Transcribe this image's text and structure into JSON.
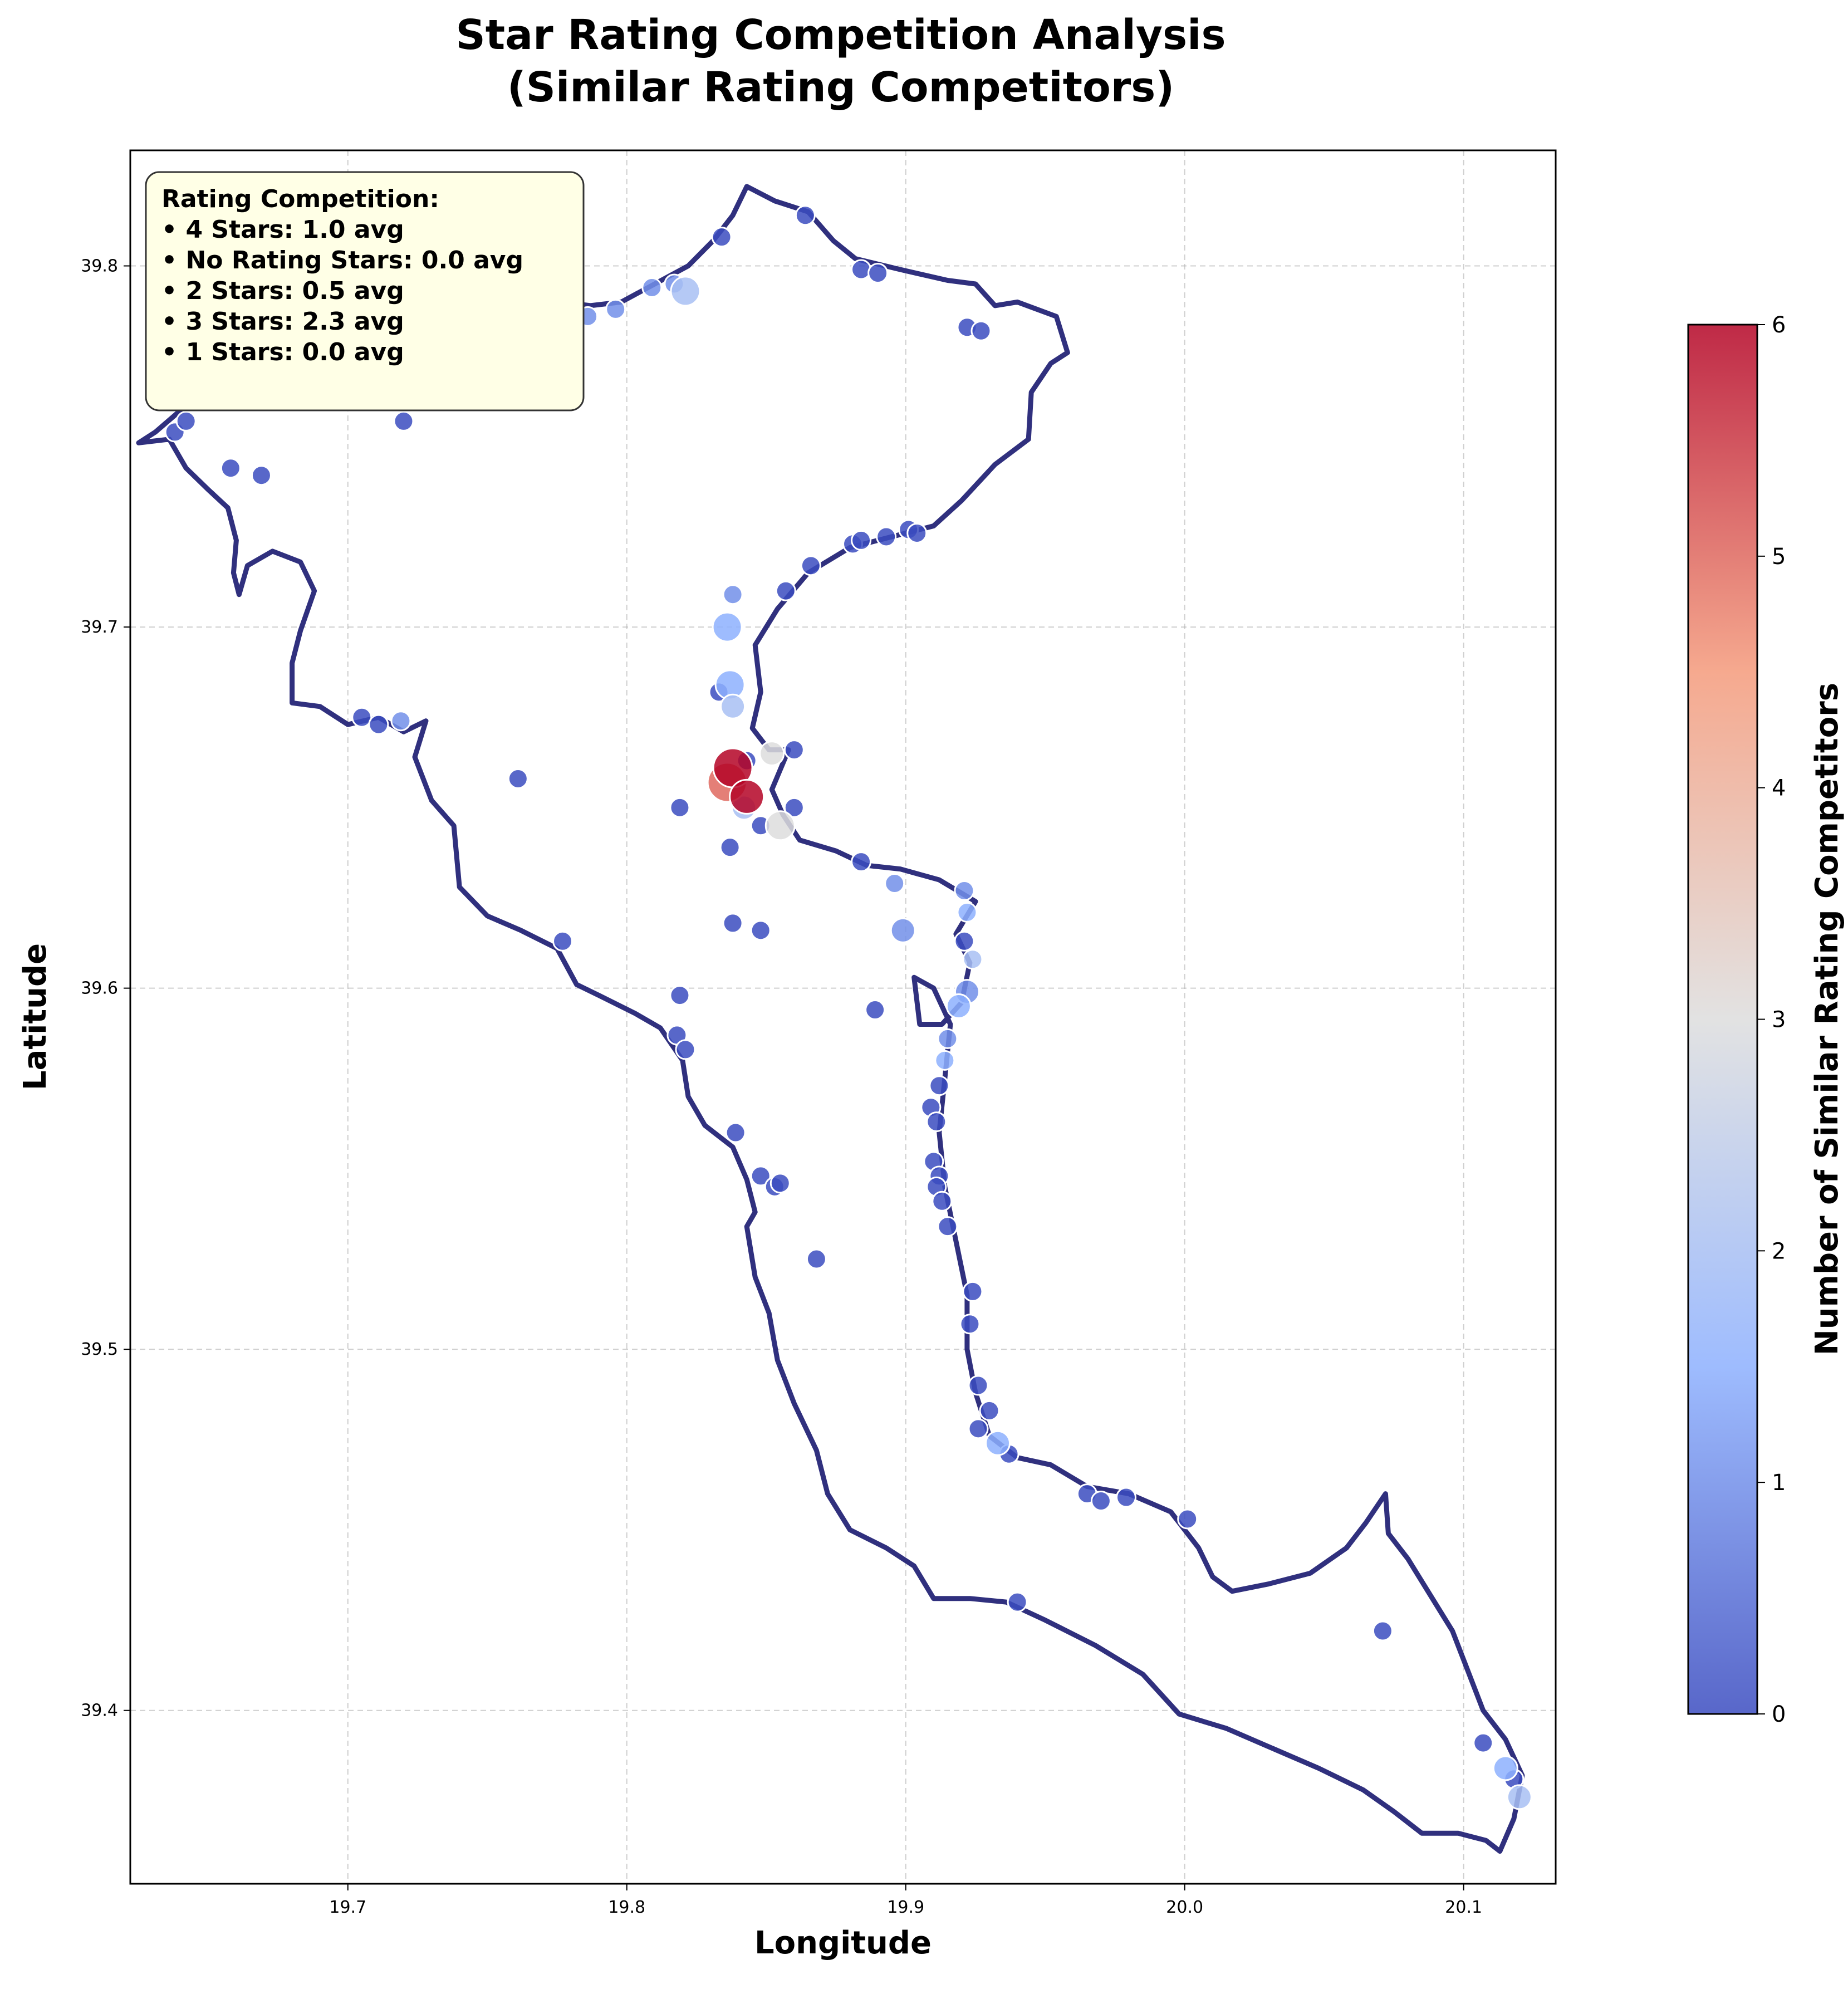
{
  "chart_data": {
    "type": "scatter",
    "title_lines": [
      "Star Rating Competition Analysis",
      "(Similar Rating Competitors)"
    ],
    "xlabel": "Longitude",
    "ylabel": "Latitude",
    "xlim": [
      19.622,
      20.133
    ],
    "ylim": [
      39.352,
      39.832
    ],
    "xticks": [
      19.7,
      19.8,
      19.9,
      20.0,
      20.1
    ],
    "yticks": [
      39.4,
      39.5,
      39.6,
      39.7,
      39.8
    ],
    "grid": true,
    "colorbar": {
      "label": "Number of Similar Rating Competitors",
      "min": 0,
      "max": 6,
      "ticks": [
        0,
        1,
        2,
        3,
        4,
        5,
        6
      ],
      "colormap": "coolwarm",
      "color_stops": [
        "#3b4cc0",
        "#8db0fe",
        "#dddddd",
        "#f49a7b",
        "#b40426"
      ]
    },
    "outline_color": "#191970",
    "info_box": {
      "title": "Rating Competition:",
      "lines": [
        "• 4 Stars: 1.0 avg",
        "• No Rating Stars: 0.0 avg",
        "• 2 Stars: 0.5 avg",
        "• 3 Stars: 2.3 avg",
        "• 1 Stars: 0.0 avg"
      ]
    },
    "outline": [
      [
        19.625,
        39.751
      ],
      [
        19.636,
        39.752
      ],
      [
        19.642,
        39.744
      ],
      [
        19.65,
        39.738
      ],
      [
        19.657,
        39.733
      ],
      [
        19.66,
        39.724
      ],
      [
        19.659,
        39.715
      ],
      [
        19.661,
        39.709
      ],
      [
        19.664,
        39.717
      ],
      [
        19.673,
        39.721
      ],
      [
        19.683,
        39.718
      ],
      [
        19.688,
        39.71
      ],
      [
        19.683,
        39.699
      ],
      [
        19.68,
        39.69
      ],
      [
        19.68,
        39.679
      ],
      [
        19.69,
        39.678
      ],
      [
        19.7,
        39.673
      ],
      [
        19.711,
        39.675
      ],
      [
        19.72,
        39.671
      ],
      [
        19.728,
        39.674
      ],
      [
        19.724,
        39.664
      ],
      [
        19.73,
        39.652
      ],
      [
        19.738,
        39.645
      ],
      [
        19.74,
        39.628
      ],
      [
        19.75,
        39.62
      ],
      [
        19.762,
        39.616
      ],
      [
        19.775,
        39.611
      ],
      [
        19.782,
        39.601
      ],
      [
        19.79,
        39.598
      ],
      [
        19.803,
        39.593
      ],
      [
        19.812,
        39.589
      ],
      [
        19.82,
        39.58
      ],
      [
        19.822,
        39.57
      ],
      [
        19.828,
        39.562
      ],
      [
        19.838,
        39.556
      ],
      [
        19.843,
        39.547
      ],
      [
        19.846,
        39.538
      ],
      [
        19.843,
        39.534
      ],
      [
        19.846,
        39.52
      ],
      [
        19.851,
        39.51
      ],
      [
        19.854,
        39.497
      ],
      [
        19.86,
        39.485
      ],
      [
        19.868,
        39.472
      ],
      [
        19.872,
        39.46
      ],
      [
        19.88,
        39.45
      ],
      [
        19.893,
        39.445
      ],
      [
        19.903,
        39.44
      ],
      [
        19.91,
        39.431
      ],
      [
        19.923,
        39.431
      ],
      [
        19.936,
        39.43
      ],
      [
        19.95,
        39.425
      ],
      [
        19.968,
        39.418
      ],
      [
        19.985,
        39.41
      ],
      [
        19.998,
        39.399
      ],
      [
        20.015,
        39.395
      ],
      [
        20.03,
        39.39
      ],
      [
        20.048,
        39.384
      ],
      [
        20.064,
        39.378
      ],
      [
        20.075,
        39.372
      ],
      [
        20.085,
        39.366
      ],
      [
        20.098,
        39.366
      ],
      [
        20.108,
        39.364
      ],
      [
        20.113,
        39.361
      ],
      [
        20.118,
        39.37
      ],
      [
        20.121,
        39.382
      ],
      [
        20.115,
        39.392
      ],
      [
        20.107,
        39.4
      ],
      [
        20.101,
        39.412
      ],
      [
        20.096,
        39.422
      ],
      [
        20.088,
        39.432
      ],
      [
        20.08,
        39.442
      ],
      [
        20.073,
        39.449
      ],
      [
        20.072,
        39.46
      ],
      [
        20.065,
        39.452
      ],
      [
        20.058,
        39.445
      ],
      [
        20.045,
        39.438
      ],
      [
        20.03,
        39.435
      ],
      [
        20.017,
        39.433
      ],
      [
        20.01,
        39.437
      ],
      [
        20.005,
        39.445
      ],
      [
        19.995,
        39.455
      ],
      [
        19.98,
        39.46
      ],
      [
        19.965,
        39.462
      ],
      [
        19.952,
        39.468
      ],
      [
        19.94,
        39.47
      ],
      [
        19.93,
        39.476
      ],
      [
        19.925,
        39.488
      ],
      [
        19.922,
        39.5
      ],
      [
        19.922,
        39.515
      ],
      [
        19.918,
        39.53
      ],
      [
        19.914,
        39.545
      ],
      [
        19.912,
        39.56
      ],
      [
        19.914,
        39.575
      ],
      [
        19.916,
        39.59
      ],
      [
        19.91,
        39.6
      ],
      [
        19.903,
        39.603
      ],
      [
        19.905,
        39.59
      ],
      [
        19.913,
        39.59
      ],
      [
        19.92,
        39.596
      ],
      [
        19.923,
        39.607
      ],
      [
        19.918,
        39.615
      ],
      [
        19.925,
        39.624
      ],
      [
        19.912,
        39.63
      ],
      [
        19.898,
        39.633
      ],
      [
        19.886,
        39.634
      ],
      [
        19.875,
        39.638
      ],
      [
        19.862,
        39.641
      ],
      [
        19.856,
        39.648
      ],
      [
        19.852,
        39.655
      ],
      [
        19.858,
        39.666
      ],
      [
        19.851,
        39.666
      ],
      [
        19.845,
        39.672
      ],
      [
        19.848,
        39.682
      ],
      [
        19.846,
        39.695
      ],
      [
        19.854,
        39.705
      ],
      [
        19.865,
        39.715
      ],
      [
        19.88,
        39.722
      ],
      [
        19.895,
        39.725
      ],
      [
        19.91,
        39.728
      ],
      [
        19.92,
        39.735
      ],
      [
        19.932,
        39.745
      ],
      [
        19.944,
        39.752
      ],
      [
        19.945,
        39.765
      ],
      [
        19.952,
        39.773
      ],
      [
        19.958,
        39.776
      ],
      [
        19.954,
        39.786
      ],
      [
        19.94,
        39.79
      ],
      [
        19.932,
        39.789
      ],
      [
        19.925,
        39.795
      ],
      [
        19.915,
        39.796
      ],
      [
        19.898,
        39.799
      ],
      [
        19.882,
        39.802
      ],
      [
        19.874,
        39.807
      ],
      [
        19.865,
        39.815
      ],
      [
        19.853,
        39.818
      ],
      [
        19.843,
        39.822
      ],
      [
        19.838,
        39.814
      ],
      [
        19.831,
        39.807
      ],
      [
        19.822,
        39.8
      ],
      [
        19.81,
        39.795
      ],
      [
        19.798,
        39.79
      ],
      [
        19.787,
        39.789
      ],
      [
        19.776,
        39.79
      ],
      [
        19.76,
        39.795
      ],
      [
        19.748,
        39.794
      ],
      [
        19.733,
        39.797
      ],
      [
        19.718,
        39.795
      ],
      [
        19.702,
        39.799
      ],
      [
        19.69,
        39.8
      ],
      [
        19.677,
        39.799
      ],
      [
        19.665,
        39.793
      ],
      [
        19.655,
        39.782
      ],
      [
        19.648,
        39.772
      ],
      [
        19.64,
        39.76
      ],
      [
        19.631,
        39.754
      ],
      [
        19.625,
        39.751
      ]
    ],
    "points": [
      {
        "x": 19.638,
        "y": 39.754,
        "c": 0,
        "s": 1
      },
      {
        "x": 19.642,
        "y": 39.757,
        "c": 0,
        "s": 1
      },
      {
        "x": 19.658,
        "y": 39.744,
        "c": 0,
        "s": 1
      },
      {
        "x": 19.669,
        "y": 39.742,
        "c": 0,
        "s": 1
      },
      {
        "x": 19.72,
        "y": 39.757,
        "c": 0,
        "s": 1
      },
      {
        "x": 19.786,
        "y": 39.786,
        "c": 1,
        "s": 1
      },
      {
        "x": 19.796,
        "y": 39.788,
        "c": 1,
        "s": 1
      },
      {
        "x": 19.809,
        "y": 39.794,
        "c": 1,
        "s": 1
      },
      {
        "x": 19.817,
        "y": 39.795,
        "c": 1,
        "s": 1
      },
      {
        "x": 19.821,
        "y": 39.793,
        "c": 2,
        "s": 2
      },
      {
        "x": 19.834,
        "y": 39.808,
        "c": 0,
        "s": 1
      },
      {
        "x": 19.864,
        "y": 39.814,
        "c": 0,
        "s": 1
      },
      {
        "x": 19.884,
        "y": 39.799,
        "c": 0,
        "s": 1
      },
      {
        "x": 19.89,
        "y": 39.798,
        "c": 0,
        "s": 1
      },
      {
        "x": 19.922,
        "y": 39.783,
        "c": 0,
        "s": 1
      },
      {
        "x": 19.927,
        "y": 39.782,
        "c": 0,
        "s": 1
      },
      {
        "x": 19.866,
        "y": 39.717,
        "c": 0,
        "s": 1
      },
      {
        "x": 19.881,
        "y": 39.723,
        "c": 0,
        "s": 1
      },
      {
        "x": 19.884,
        "y": 39.724,
        "c": 0,
        "s": 1
      },
      {
        "x": 19.893,
        "y": 39.725,
        "c": 0,
        "s": 1
      },
      {
        "x": 19.901,
        "y": 39.727,
        "c": 0,
        "s": 1
      },
      {
        "x": 19.904,
        "y": 39.726,
        "c": 0,
        "s": 1
      },
      {
        "x": 19.857,
        "y": 39.71,
        "c": 0,
        "s": 1
      },
      {
        "x": 19.838,
        "y": 39.709,
        "c": 1,
        "s": 1
      },
      {
        "x": 19.836,
        "y": 39.7,
        "c": 1.5,
        "s": 2
      },
      {
        "x": 19.837,
        "y": 39.684,
        "c": 1.5,
        "s": 2
      },
      {
        "x": 19.833,
        "y": 39.682,
        "c": 0,
        "s": 1
      },
      {
        "x": 19.838,
        "y": 39.678,
        "c": 2,
        "s": 1.5
      },
      {
        "x": 19.86,
        "y": 39.666,
        "c": 0,
        "s": 1
      },
      {
        "x": 19.852,
        "y": 39.665,
        "c": 3,
        "s": 1.5
      },
      {
        "x": 19.843,
        "y": 39.663,
        "c": 0,
        "s": 1
      },
      {
        "x": 19.838,
        "y": 39.661,
        "c": 6,
        "s": 3
      },
      {
        "x": 19.836,
        "y": 39.657,
        "c": 5,
        "s": 3
      },
      {
        "x": 19.843,
        "y": 39.653,
        "c": 6,
        "s": 2.5
      },
      {
        "x": 19.842,
        "y": 39.65,
        "c": 2,
        "s": 1.5
      },
      {
        "x": 19.855,
        "y": 39.645,
        "c": 3,
        "s": 2
      },
      {
        "x": 19.848,
        "y": 39.645,
        "c": 0,
        "s": 1
      },
      {
        "x": 19.86,
        "y": 39.65,
        "c": 0,
        "s": 1
      },
      {
        "x": 19.819,
        "y": 39.65,
        "c": 0,
        "s": 1
      },
      {
        "x": 19.837,
        "y": 39.639,
        "c": 0,
        "s": 1
      },
      {
        "x": 19.761,
        "y": 39.658,
        "c": 0,
        "s": 1
      },
      {
        "x": 19.705,
        "y": 39.675,
        "c": 0,
        "s": 1
      },
      {
        "x": 19.711,
        "y": 39.673,
        "c": 0,
        "s": 1
      },
      {
        "x": 19.719,
        "y": 39.674,
        "c": 1,
        "s": 1
      },
      {
        "x": 19.777,
        "y": 39.613,
        "c": 0,
        "s": 1
      },
      {
        "x": 19.838,
        "y": 39.618,
        "c": 0,
        "s": 1
      },
      {
        "x": 19.848,
        "y": 39.616,
        "c": 0,
        "s": 1
      },
      {
        "x": 19.884,
        "y": 39.635,
        "c": 0,
        "s": 1
      },
      {
        "x": 19.896,
        "y": 39.629,
        "c": 1,
        "s": 1
      },
      {
        "x": 19.899,
        "y": 39.616,
        "c": 1,
        "s": 1.5
      },
      {
        "x": 19.921,
        "y": 39.627,
        "c": 1,
        "s": 1
      },
      {
        "x": 19.922,
        "y": 39.621,
        "c": 1.5,
        "s": 1
      },
      {
        "x": 19.921,
        "y": 39.613,
        "c": 0,
        "s": 1
      },
      {
        "x": 19.924,
        "y": 39.608,
        "c": 2,
        "s": 1
      },
      {
        "x": 19.922,
        "y": 39.599,
        "c": 1,
        "s": 1.5
      },
      {
        "x": 19.919,
        "y": 39.595,
        "c": 1.5,
        "s": 1.5
      },
      {
        "x": 19.915,
        "y": 39.586,
        "c": 1,
        "s": 1
      },
      {
        "x": 19.914,
        "y": 39.58,
        "c": 1.5,
        "s": 1
      },
      {
        "x": 19.912,
        "y": 39.573,
        "c": 0,
        "s": 1
      },
      {
        "x": 19.909,
        "y": 39.567,
        "c": 0,
        "s": 1
      },
      {
        "x": 19.911,
        "y": 39.563,
        "c": 0,
        "s": 1
      },
      {
        "x": 19.91,
        "y": 39.552,
        "c": 0,
        "s": 1
      },
      {
        "x": 19.912,
        "y": 39.548,
        "c": 0,
        "s": 1
      },
      {
        "x": 19.911,
        "y": 39.545,
        "c": 0,
        "s": 1
      },
      {
        "x": 19.913,
        "y": 39.541,
        "c": 0,
        "s": 1
      },
      {
        "x": 19.915,
        "y": 39.534,
        "c": 0,
        "s": 1
      },
      {
        "x": 19.889,
        "y": 39.594,
        "c": 0,
        "s": 1
      },
      {
        "x": 19.819,
        "y": 39.598,
        "c": 0,
        "s": 1
      },
      {
        "x": 19.818,
        "y": 39.587,
        "c": 0,
        "s": 1
      },
      {
        "x": 19.821,
        "y": 39.583,
        "c": 0,
        "s": 1
      },
      {
        "x": 19.839,
        "y": 39.56,
        "c": 0,
        "s": 1
      },
      {
        "x": 19.848,
        "y": 39.548,
        "c": 0,
        "s": 1
      },
      {
        "x": 19.853,
        "y": 39.545,
        "c": 0,
        "s": 1
      },
      {
        "x": 19.855,
        "y": 39.546,
        "c": 0,
        "s": 1
      },
      {
        "x": 19.868,
        "y": 39.525,
        "c": 0,
        "s": 1
      },
      {
        "x": 19.924,
        "y": 39.516,
        "c": 0,
        "s": 1
      },
      {
        "x": 19.923,
        "y": 39.507,
        "c": 0,
        "s": 1
      },
      {
        "x": 19.926,
        "y": 39.49,
        "c": 0,
        "s": 1
      },
      {
        "x": 19.93,
        "y": 39.483,
        "c": 0,
        "s": 1
      },
      {
        "x": 19.926,
        "y": 39.478,
        "c": 0,
        "s": 1
      },
      {
        "x": 19.933,
        "y": 39.474,
        "c": 1.5,
        "s": 1.5
      },
      {
        "x": 19.937,
        "y": 39.471,
        "c": 0,
        "s": 1
      },
      {
        "x": 19.965,
        "y": 39.46,
        "c": 0,
        "s": 1
      },
      {
        "x": 19.97,
        "y": 39.458,
        "c": 0,
        "s": 1
      },
      {
        "x": 19.979,
        "y": 39.459,
        "c": 0,
        "s": 1
      },
      {
        "x": 20.001,
        "y": 39.453,
        "c": 0,
        "s": 1
      },
      {
        "x": 19.94,
        "y": 39.43,
        "c": 0,
        "s": 1
      },
      {
        "x": 20.071,
        "y": 39.422,
        "c": 0,
        "s": 1
      },
      {
        "x": 20.107,
        "y": 39.391,
        "c": 0,
        "s": 1
      },
      {
        "x": 20.115,
        "y": 39.384,
        "c": 1.5,
        "s": 1.5
      },
      {
        "x": 20.118,
        "y": 39.381,
        "c": 0,
        "s": 1
      },
      {
        "x": 20.12,
        "y": 39.376,
        "c": 2,
        "s": 1.5
      }
    ]
  }
}
